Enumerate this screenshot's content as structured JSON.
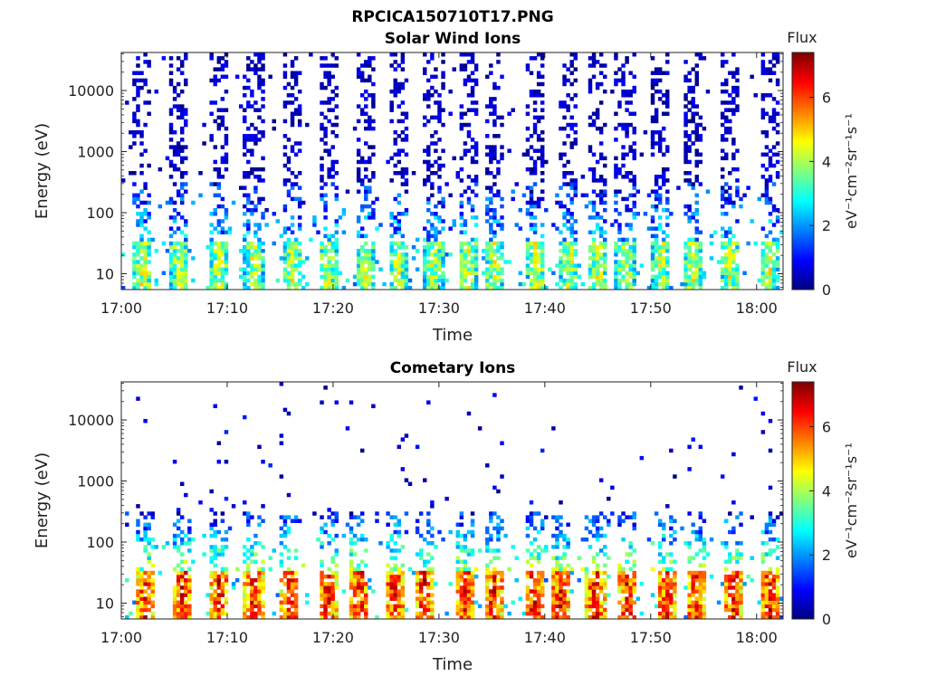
{
  "figure_title": "RPCICA150710T17.PNG",
  "chart_data": [
    {
      "type": "heatmap",
      "title": "Solar Wind Ions",
      "xlabel": "Time",
      "ylabel": "Energy (eV)",
      "x_ticks": [
        "17:00",
        "17:10",
        "17:20",
        "17:30",
        "17:40",
        "17:50",
        "18:00"
      ],
      "x_range_minutes": [
        0,
        62.5
      ],
      "y_ticks": [
        "10",
        "100",
        "1000",
        "10000"
      ],
      "y_scale": "log",
      "y_range": [
        5.5,
        42000
      ],
      "colorbar": {
        "title": "Flux",
        "unit": "eV⁻¹cm⁻²sr⁻¹s⁻¹",
        "ticks": [
          "0",
          "2",
          "4",
          "6"
        ],
        "range": [
          0,
          7.4
        ]
      },
      "burst_minutes": [
        2.0,
        5.5,
        9.3,
        12.5,
        16.2,
        19.5,
        23.0,
        26.1,
        29.5,
        32.8,
        35.2,
        39.2,
        42.3,
        45.1,
        47.6,
        51.0,
        54.0,
        57.5,
        61.2
      ],
      "low_band_level": 4.2,
      "high_band_level": 0.8
    },
    {
      "type": "heatmap",
      "title": "Cometary Ions",
      "xlabel": "Time",
      "ylabel": "Energy (eV)",
      "x_ticks": [
        "17:00",
        "17:10",
        "17:20",
        "17:30",
        "17:40",
        "17:50",
        "18:00"
      ],
      "x_range_minutes": [
        0,
        62.5
      ],
      "y_ticks": [
        "10",
        "100",
        "1000",
        "10000"
      ],
      "y_scale": "log",
      "y_range": [
        5.5,
        42000
      ],
      "colorbar": {
        "title": "Flux",
        "unit": "eV⁻¹cm⁻²sr⁻¹s⁻¹",
        "ticks": [
          "0",
          "2",
          "4",
          "6"
        ],
        "range": [
          0,
          7.4
        ]
      },
      "burst_minutes": [
        2.3,
        5.8,
        9.3,
        12.5,
        15.9,
        19.5,
        22.5,
        25.8,
        28.6,
        32.5,
        35.2,
        39.0,
        41.5,
        44.8,
        47.8,
        51.5,
        54.2,
        57.8,
        61.3
      ],
      "low_band_level": 6.3,
      "high_band_level": 1.0
    }
  ]
}
